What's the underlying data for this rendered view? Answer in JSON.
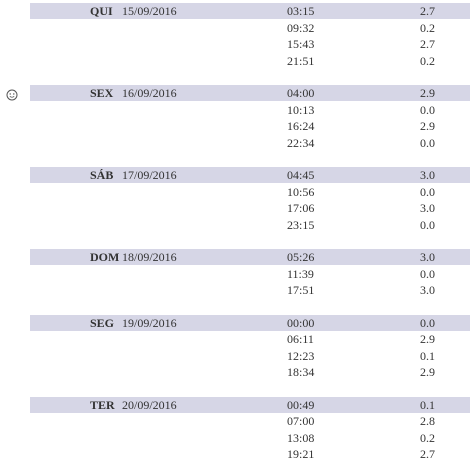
{
  "days": [
    {
      "day": "QUI",
      "date": "15/09/2016",
      "rows": [
        [
          "03:15",
          "2.7"
        ],
        [
          "09:32",
          "0.2"
        ],
        [
          "15:43",
          "2.7"
        ],
        [
          "21:51",
          "0.2"
        ]
      ]
    },
    {
      "day": "SEX",
      "date": "16/09/2016",
      "rows": [
        [
          "04:00",
          "2.9"
        ],
        [
          "10:13",
          "0.0"
        ],
        [
          "16:24",
          "2.9"
        ],
        [
          "22:34",
          "0.0"
        ]
      ]
    },
    {
      "day": "SÁB",
      "date": "17/09/2016",
      "rows": [
        [
          "04:45",
          "3.0"
        ],
        [
          "10:56",
          "0.0"
        ],
        [
          "17:06",
          "3.0"
        ],
        [
          "23:15",
          "0.0"
        ]
      ]
    },
    {
      "day": "DOM",
      "date": "18/09/2016",
      "rows": [
        [
          "05:26",
          "3.0"
        ],
        [
          "11:39",
          "0.0"
        ],
        [
          "17:51",
          "3.0"
        ]
      ]
    },
    {
      "day": "SEG",
      "date": "19/09/2016",
      "rows": [
        [
          "00:00",
          "0.0"
        ],
        [
          "06:11",
          "2.9"
        ],
        [
          "12:23",
          "0.1"
        ],
        [
          "18:34",
          "2.9"
        ]
      ]
    },
    {
      "day": "TER",
      "date": "20/09/2016",
      "rows": [
        [
          "00:49",
          "0.1"
        ],
        [
          "07:00",
          "2.8"
        ],
        [
          "13:08",
          "0.2"
        ],
        [
          "19:21",
          "2.7"
        ]
      ]
    }
  ]
}
